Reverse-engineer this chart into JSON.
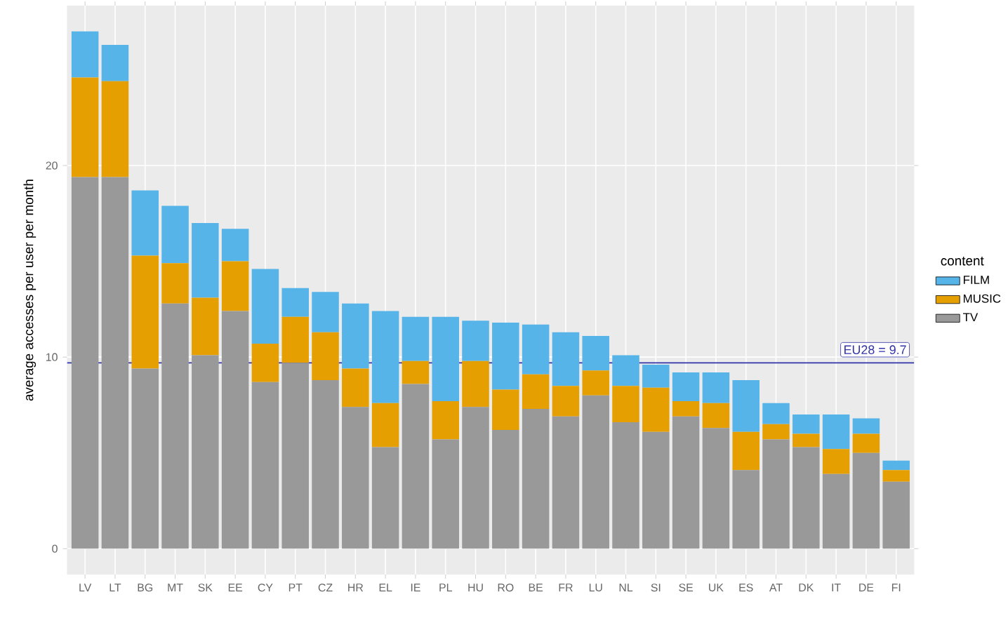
{
  "chart_data": {
    "type": "bar",
    "stacked": true,
    "ylabel": "average accesses per user per month",
    "legend_title": "content",
    "categories": [
      "LV",
      "LT",
      "BG",
      "MT",
      "SK",
      "EE",
      "CY",
      "PT",
      "CZ",
      "HR",
      "EL",
      "IE",
      "PL",
      "HU",
      "RO",
      "BE",
      "FR",
      "LU",
      "NL",
      "SI",
      "SE",
      "UK",
      "ES",
      "AT",
      "DK",
      "IT",
      "DE",
      "FI"
    ],
    "series": [
      {
        "name": "TV",
        "color": "#999999",
        "values": [
          19.4,
          19.4,
          9.4,
          12.8,
          10.1,
          12.4,
          8.7,
          9.7,
          8.8,
          7.4,
          5.3,
          8.6,
          5.7,
          7.4,
          6.2,
          7.3,
          6.9,
          8.0,
          6.6,
          6.1,
          6.9,
          6.3,
          4.1,
          5.7,
          5.3,
          3.9,
          5.0,
          3.5
        ]
      },
      {
        "name": "MUSIC",
        "color": "#E69F00",
        "values": [
          5.2,
          5.0,
          5.9,
          2.1,
          3.0,
          2.6,
          2.0,
          2.4,
          2.5,
          2.0,
          2.3,
          1.2,
          2.0,
          2.4,
          2.1,
          1.8,
          1.6,
          1.3,
          1.9,
          2.3,
          0.8,
          1.3,
          2.0,
          0.8,
          0.7,
          1.3,
          1.0,
          0.6
        ]
      },
      {
        "name": "FILM",
        "color": "#56B4E9",
        "values": [
          2.4,
          1.9,
          3.4,
          3.0,
          3.9,
          1.7,
          3.9,
          1.5,
          2.1,
          3.4,
          4.8,
          2.3,
          4.4,
          2.1,
          3.5,
          2.6,
          2.8,
          1.8,
          1.6,
          1.2,
          1.5,
          1.6,
          2.7,
          1.1,
          1.0,
          1.8,
          0.8,
          0.5
        ]
      }
    ],
    "ylim": [
      -1.35,
      28.35
    ],
    "yticks": [
      0,
      10,
      20
    ],
    "grid": true,
    "legend": "right",
    "ref_lines": [
      {
        "axis": "y",
        "value": 9.7,
        "label": "EU28 = 9.7",
        "color": "#3333AA"
      }
    ]
  }
}
